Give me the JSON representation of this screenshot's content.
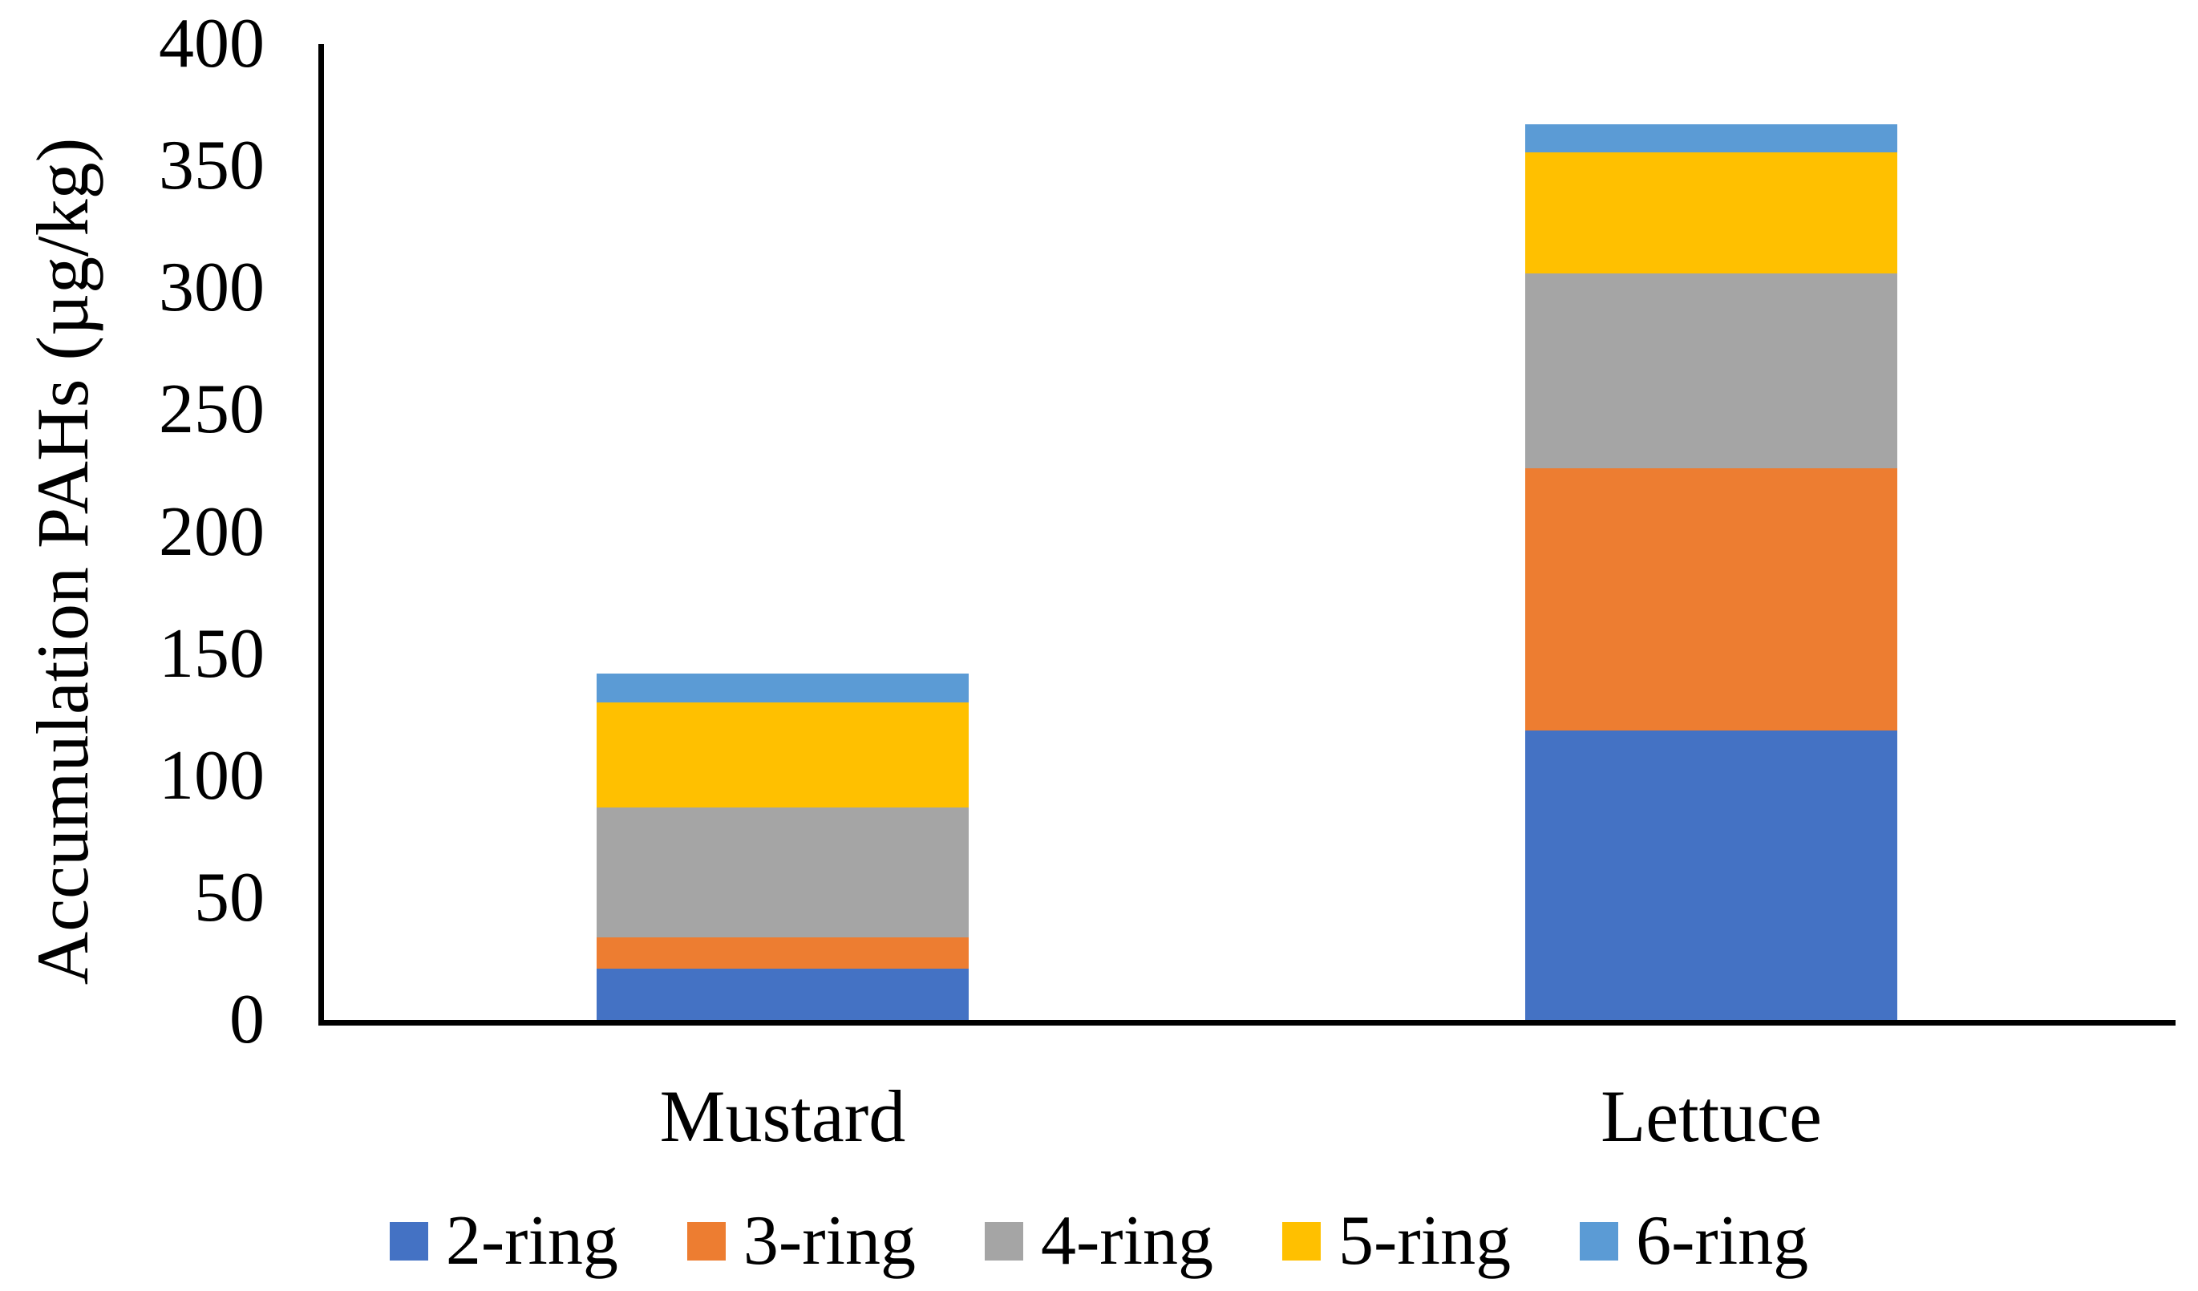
{
  "chart_data": {
    "type": "bar",
    "stacked": true,
    "title": "",
    "xlabel": "",
    "ylabel": "Accumulation PAHs (µg/kg)",
    "categories": [
      "Mustard",
      "Lettuce"
    ],
    "series": [
      {
        "name": "2-ring",
        "color": "#4472C4",
        "values": [
          21,
          118.5
        ]
      },
      {
        "name": "3-ring",
        "color": "#ED7D31",
        "values": [
          13,
          107.5
        ]
      },
      {
        "name": "4-ring",
        "color": "#A5A5A5",
        "values": [
          53,
          80
        ]
      },
      {
        "name": "5-ring",
        "color": "#FFC000",
        "values": [
          43,
          49.5
        ]
      },
      {
        "name": "6-ring",
        "color": "#5B9BD5",
        "values": [
          12,
          11.5
        ]
      }
    ],
    "totals": [
      142,
      367
    ],
    "ylim": [
      0,
      400
    ],
    "ytick_step": 50,
    "ytick_labels": [
      "0",
      "50",
      "100",
      "150",
      "200",
      "250",
      "300",
      "350",
      "400"
    ],
    "grid": false,
    "legend_position": "bottom",
    "axis_color": "#000000",
    "text_color": "#000000",
    "background_color": "#FFFFFF"
  }
}
